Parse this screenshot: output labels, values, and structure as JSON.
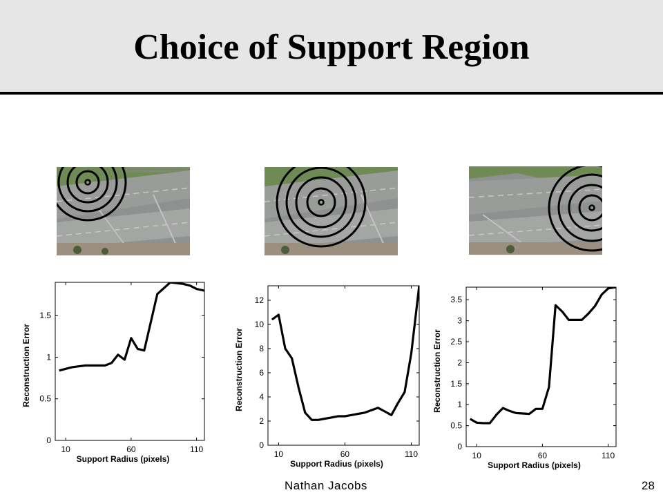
{
  "slide": {
    "title": "Choice of Support Region",
    "author": "Nathan Jacobs",
    "page_number": "28"
  },
  "colors": {
    "title_bar": "#e6e6e6",
    "rule": "#000000",
    "line": "#000000"
  },
  "images": [
    {
      "name": "intersection-photo-1",
      "description_icon": "aerial-intersection-photo",
      "support_point": "top-left"
    },
    {
      "name": "intersection-photo-2",
      "description_icon": "aerial-intersection-photo",
      "support_point": "center"
    },
    {
      "name": "intersection-photo-3",
      "description_icon": "aerial-intersection-photo",
      "support_point": "right"
    }
  ],
  "chart_data": [
    {
      "type": "line",
      "xlabel": "Support Radius (pixels)",
      "ylabel": "Reconstruction Error",
      "xlim": [
        2,
        116
      ],
      "ylim": [
        0,
        1.9
      ],
      "xticks": [
        10,
        60,
        110
      ],
      "yticks": [
        0,
        0.5,
        1,
        1.5
      ],
      "ytick_labels": [
        "0",
        "0.5",
        "1",
        "1.5"
      ],
      "x": [
        5,
        10,
        15,
        20,
        25,
        30,
        35,
        40,
        45,
        50,
        55,
        60,
        65,
        70,
        75,
        80,
        85,
        90,
        95,
        100,
        105,
        110,
        116
      ],
      "y": [
        0.84,
        0.86,
        0.88,
        0.89,
        0.9,
        0.9,
        0.9,
        0.9,
        0.93,
        1.03,
        0.97,
        1.23,
        1.1,
        1.08,
        1.42,
        1.76,
        1.83,
        1.9,
        1.89,
        1.88,
        1.86,
        1.82,
        1.8
      ]
    },
    {
      "type": "line",
      "xlabel": "Support Radius (pixels)",
      "ylabel": "Reconstruction Error",
      "xlim": [
        2,
        116
      ],
      "ylim": [
        0,
        13.2
      ],
      "xticks": [
        10,
        60,
        110
      ],
      "yticks": [
        0,
        2,
        4,
        6,
        8,
        10,
        12
      ],
      "ytick_labels": [
        "0",
        "2",
        "4",
        "6",
        "8",
        "10",
        "12"
      ],
      "x": [
        5,
        10,
        15,
        20,
        25,
        30,
        35,
        40,
        45,
        50,
        55,
        60,
        65,
        70,
        75,
        80,
        85,
        90,
        95,
        100,
        105,
        110,
        116
      ],
      "y": [
        10.4,
        10.8,
        8.0,
        7.2,
        4.8,
        2.7,
        2.1,
        2.1,
        2.2,
        2.3,
        2.4,
        2.4,
        2.5,
        2.6,
        2.7,
        2.9,
        3.1,
        2.8,
        2.5,
        3.5,
        4.4,
        7.6,
        13.2
      ]
    },
    {
      "type": "line",
      "xlabel": "Support Radius (pixels)",
      "ylabel": "Reconstruction Error",
      "xlim": [
        2,
        116
      ],
      "ylim": [
        0,
        3.8
      ],
      "xticks": [
        10,
        60,
        110
      ],
      "yticks": [
        0,
        0.5,
        1,
        1.5,
        2,
        2.5,
        3,
        3.5
      ],
      "ytick_labels": [
        "0",
        "0.5",
        "1",
        "1.5",
        "2",
        "2.5",
        "3",
        "3.5"
      ],
      "x": [
        5,
        10,
        15,
        20,
        25,
        30,
        35,
        40,
        45,
        50,
        55,
        60,
        65,
        70,
        75,
        80,
        85,
        90,
        95,
        100,
        105,
        110,
        116
      ],
      "y": [
        0.66,
        0.57,
        0.56,
        0.56,
        0.76,
        0.92,
        0.85,
        0.8,
        0.79,
        0.78,
        0.9,
        0.9,
        1.42,
        3.37,
        3.22,
        3.02,
        3.02,
        3.02,
        3.17,
        3.35,
        3.62,
        3.77,
        3.8
      ]
    }
  ]
}
